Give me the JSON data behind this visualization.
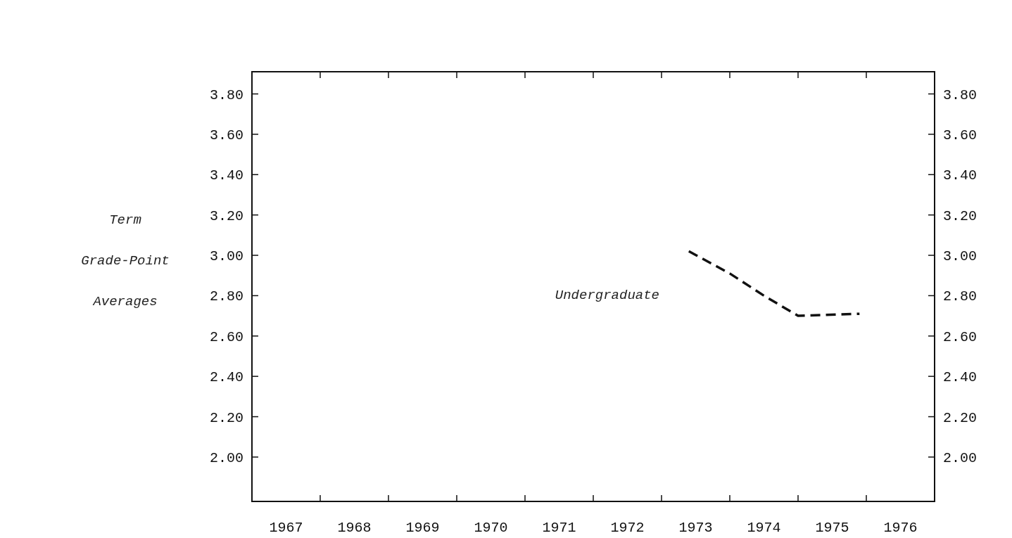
{
  "chart_data": {
    "type": "line",
    "ylabel": "Term\nGrade-Point\nAverages",
    "x": [
      1973.4,
      1974.0,
      1974.5,
      1975.0,
      1975.9
    ],
    "series": [
      {
        "name": "Undergraduate",
        "color": "#111111",
        "values": [
          3.02,
          2.91,
          2.8,
          2.7,
          2.71
        ]
      }
    ],
    "xlim": [
      1967,
      1977
    ],
    "xticks": [
      {
        "value": 1967.5,
        "label": "1967"
      },
      {
        "value": 1968,
        "label": null
      },
      {
        "value": 1968.5,
        "label": "1968"
      },
      {
        "value": 1969,
        "label": null
      },
      {
        "value": 1969.5,
        "label": "1969"
      },
      {
        "value": 1970,
        "label": null
      },
      {
        "value": 1970.5,
        "label": "1970"
      },
      {
        "value": 1971,
        "label": null
      },
      {
        "value": 1971.5,
        "label": "1971"
      },
      {
        "value": 1972,
        "label": null
      },
      {
        "value": 1972.5,
        "label": "1972"
      },
      {
        "value": 1973,
        "label": null
      },
      {
        "value": 1973.5,
        "label": "1973"
      },
      {
        "value": 1974,
        "label": null
      },
      {
        "value": 1974.5,
        "label": "1974"
      },
      {
        "value": 1975,
        "label": null
      },
      {
        "value": 1975.5,
        "label": "1975"
      },
      {
        "value": 1976,
        "label": null
      },
      {
        "value": 1976.5,
        "label": "1976"
      }
    ],
    "ylim": [
      1.78,
      3.91
    ],
    "yticks": [
      {
        "value": 2,
        "label": "2.00"
      },
      {
        "value": 2.2,
        "label": "2.20"
      },
      {
        "value": 2.4,
        "label": "2.40"
      },
      {
        "value": 2.6,
        "label": "2.60"
      },
      {
        "value": 2.8,
        "label": "2.80"
      },
      {
        "value": 3,
        "label": "3.00"
      },
      {
        "value": 3.2,
        "label": "3.20"
      },
      {
        "value": 3.4,
        "label": "3.40"
      },
      {
        "value": 3.6,
        "label": "3.60"
      },
      {
        "value": 3.8,
        "label": "3.80"
      }
    ],
    "y2lim": [
      1.78,
      3.91
    ],
    "y2ticks": [
      {
        "value": 2,
        "label": "2.00"
      },
      {
        "value": 2.2,
        "label": "2.20"
      },
      {
        "value": 2.4,
        "label": "2.40"
      },
      {
        "value": 2.6,
        "label": "2.60"
      },
      {
        "value": 2.8,
        "label": "2.80"
      },
      {
        "value": 3,
        "label": "3.00"
      },
      {
        "value": 3.2,
        "label": "3.20"
      },
      {
        "value": 3.4,
        "label": "3.40"
      },
      {
        "value": 3.6,
        "label": "3.60"
      },
      {
        "value": 3.8,
        "label": "3.80"
      }
    ],
    "line_style": "dashed",
    "marker": "none",
    "grid": false,
    "legend": false
  }
}
